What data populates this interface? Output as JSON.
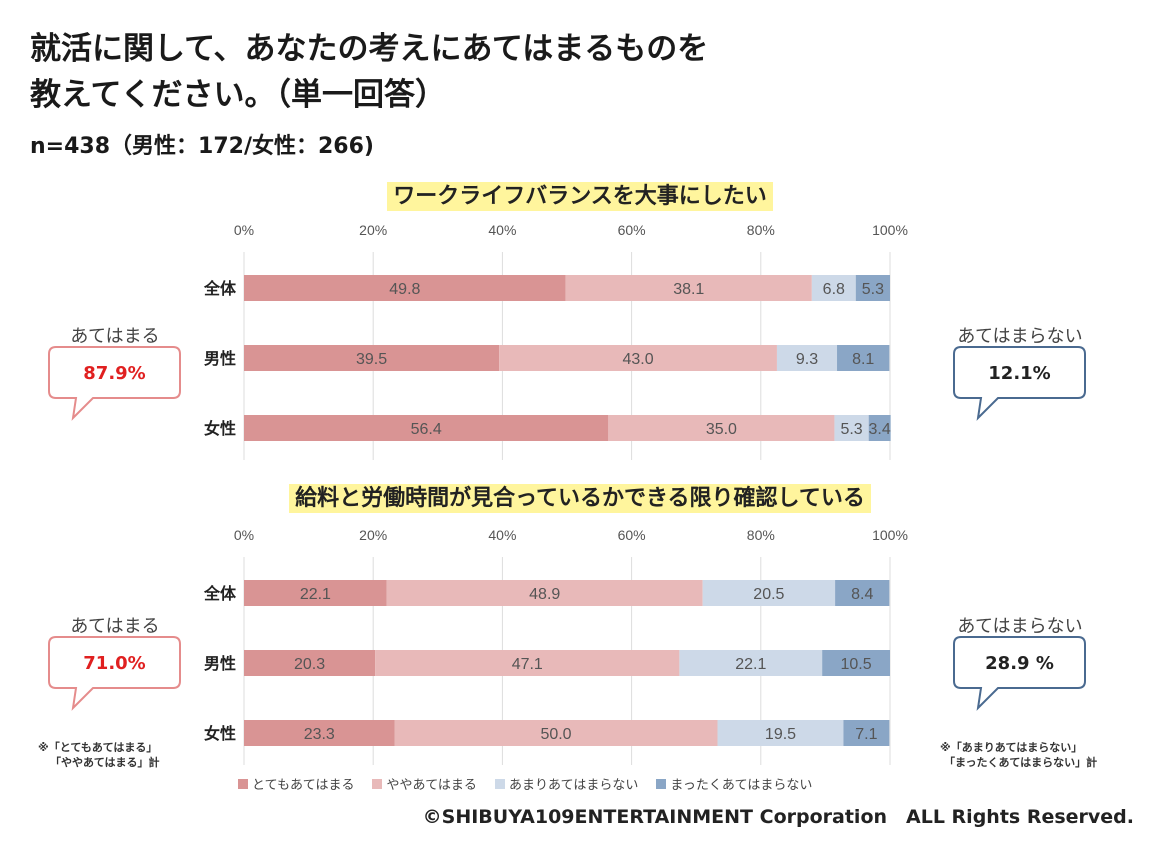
{
  "title_line1": "就活に関して、あなたの考えにあてはまるものを",
  "title_line2": "教えてください。（単一回答）",
  "subtitle": "n=438（男性：172/女性：266)",
  "colors": {
    "とてもあてはまる": "#d99494",
    "ややあてはまる": "#e8b9b9",
    "あまりあてはまらない": "#cdd9e8",
    "まったくあてはまらない": "#8aa6c6"
  },
  "legend": [
    "とてもあてはまる",
    "ややあてはまる",
    "あまりあてはまらない",
    "まったくあてはまらない"
  ],
  "chart_data": [
    {
      "type": "bar",
      "stacked": true,
      "orientation": "horizontal",
      "title": "ワークライフバランスを大事にしたい",
      "categories": [
        "全体",
        "男性",
        "女性"
      ],
      "x_ticks": [
        "0%",
        "20%",
        "40%",
        "60%",
        "80%",
        "100%"
      ],
      "xlim": [
        0,
        100
      ],
      "series": [
        {
          "name": "とてもあてはまる",
          "values": [
            49.8,
            39.5,
            56.4
          ]
        },
        {
          "name": "ややあてはまる",
          "values": [
            38.1,
            43.0,
            35.0
          ]
        },
        {
          "name": "あまりあてはまらない",
          "values": [
            6.8,
            9.3,
            5.3
          ]
        },
        {
          "name": "まったくあてはまらない",
          "values": [
            5.3,
            8.1,
            3.4
          ]
        }
      ],
      "data_labels": [
        [
          "49.8",
          "38.1",
          "6.8",
          "5.3"
        ],
        [
          "39.5",
          "43.0",
          "9.3",
          "8.1"
        ],
        [
          "56.4",
          "35.0",
          "5.3",
          "3.4"
        ]
      ]
    },
    {
      "type": "bar",
      "stacked": true,
      "orientation": "horizontal",
      "title": "給料と労働時間が見合っているかできる限り確認している",
      "categories": [
        "全体",
        "男性",
        "女性"
      ],
      "x_ticks": [
        "0%",
        "20%",
        "40%",
        "60%",
        "80%",
        "100%"
      ],
      "xlim": [
        0,
        100
      ],
      "series": [
        {
          "name": "とてもあてはまる",
          "values": [
            22.1,
            20.3,
            23.3
          ]
        },
        {
          "name": "ややあてはまる",
          "values": [
            48.9,
            47.1,
            50.0
          ]
        },
        {
          "name": "あまりあてはまらない",
          "values": [
            20.5,
            22.1,
            19.5
          ]
        },
        {
          "name": "まったくあてはまらない",
          "values": [
            8.4,
            10.5,
            7.1
          ]
        }
      ],
      "data_labels": [
        [
          "22.1",
          "48.9",
          "20.5",
          "8.4"
        ],
        [
          "20.3",
          "47.1",
          "22.1",
          "10.5"
        ],
        [
          "23.3",
          "50.0",
          "19.5",
          "7.1"
        ]
      ]
    }
  ],
  "callouts": {
    "top_left_label": "あてはまる",
    "top_left_value": "87.9%",
    "top_right_label": "あてはまらない",
    "top_right_value": "12.1%",
    "bottom_left_label": "あてはまる",
    "bottom_left_value": "71.0%",
    "bottom_right_label": "あてはまらない",
    "bottom_right_value": "28.9 %",
    "left_color": "#e56b6b",
    "right_color": "#4a6a90",
    "left_text_color": "#e02020"
  },
  "notes": {
    "left_line1": "※「とてもあてはまる」",
    "left_line2": "「ややあてはまる」計",
    "right_line1": "※「あまりあてはまらない」",
    "right_line2": "「まったくあてはまらない」計"
  },
  "copyright": "©SHIBUYA109ENTERTAINMENT Corporation　ALL Rights Reserved."
}
